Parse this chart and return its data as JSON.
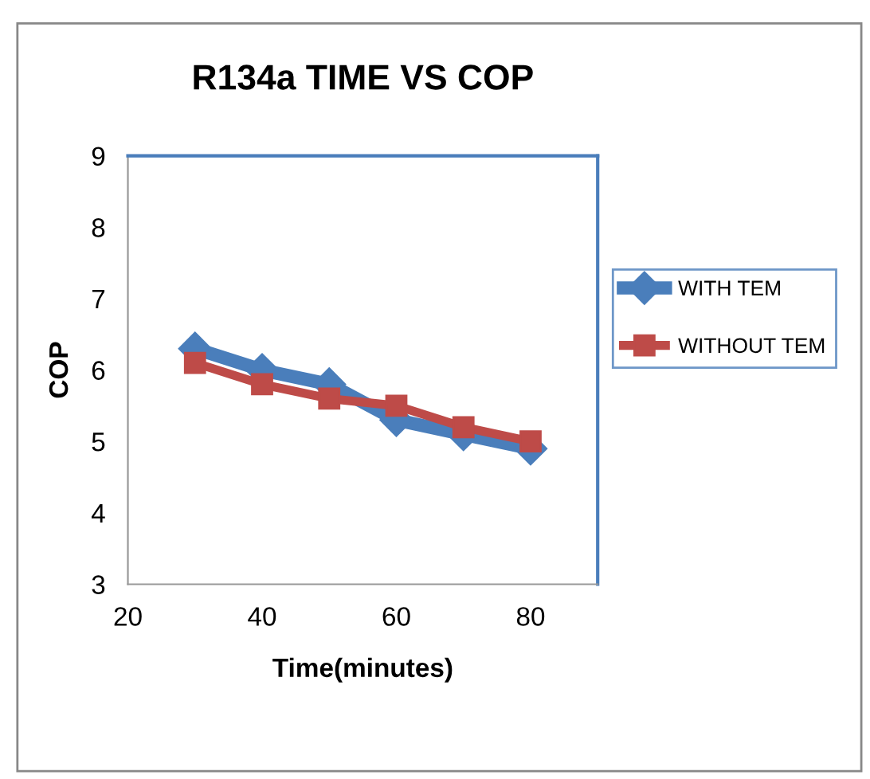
{
  "chart_data": {
    "type": "line",
    "title": "R134a TIME VS COP",
    "xlabel": "Time(minutes)",
    "ylabel": "COP",
    "x": [
      30,
      40,
      50,
      60,
      70,
      80
    ],
    "series": [
      {
        "name": "WITH TEM",
        "color": "#4a7ebb",
        "marker": "diamond",
        "values": [
          6.3,
          6.0,
          5.8,
          5.3,
          5.1,
          4.9
        ]
      },
      {
        "name": "WITHOUT TEM",
        "color": "#be4b48",
        "marker": "square",
        "values": [
          6.1,
          5.8,
          5.6,
          5.5,
          5.2,
          5.0
        ]
      }
    ],
    "xlim": [
      20,
      90
    ],
    "xticks": [
      20,
      40,
      60,
      80
    ],
    "ylim": [
      3,
      9
    ],
    "yticks": [
      3,
      4,
      5,
      6,
      7,
      8,
      9
    ],
    "grid": false,
    "legend": "right",
    "line_style": "solid"
  }
}
